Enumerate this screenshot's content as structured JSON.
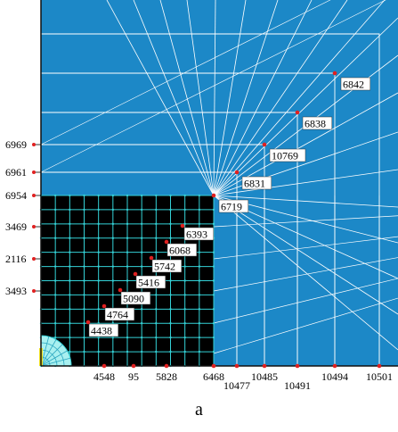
{
  "colors": {
    "background": "#1c88c7",
    "mesh_line": "#ffffff",
    "fine_region": "#000000",
    "fine_mesh": "#34d1d6",
    "node_marker": "#e02020",
    "label_bg": "#ffffff",
    "label_text": "#000000",
    "boundary": "#111111"
  },
  "mesh": {
    "region_node_labels": [
      {
        "id": "n6842",
        "text": "6842"
      },
      {
        "id": "n6838",
        "text": "6838"
      },
      {
        "id": "n10769",
        "text": "10769"
      },
      {
        "id": "n6831",
        "text": "6831"
      },
      {
        "id": "n6719",
        "text": "6719"
      },
      {
        "id": "n6393",
        "text": "6393"
      },
      {
        "id": "n6068",
        "text": "6068"
      },
      {
        "id": "n5742",
        "text": "5742"
      },
      {
        "id": "n5416",
        "text": "5416"
      },
      {
        "id": "n5090",
        "text": "5090"
      },
      {
        "id": "n4764",
        "text": "4764"
      },
      {
        "id": "n4438",
        "text": "4438"
      }
    ],
    "left_labels": [
      "6969",
      "6961",
      "6954",
      "3469",
      "2116",
      "3493"
    ],
    "bottom_labels": [
      "4548",
      "95",
      "5828",
      "6468",
      "10477",
      "10485",
      "10491",
      "10494",
      "10501"
    ]
  },
  "caption": "a"
}
